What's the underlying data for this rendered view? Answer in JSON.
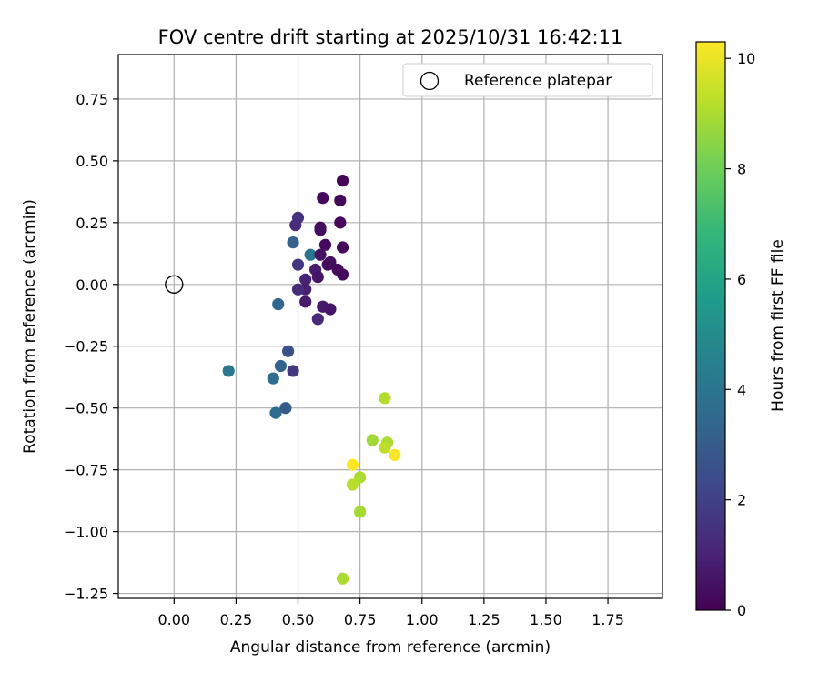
{
  "chart_data": {
    "type": "scatter",
    "title": "FOV centre drift starting at 2025/10/31 16:42:11",
    "xlabel": "Angular distance from reference (arcmin)",
    "ylabel": "Rotation from reference (arcmin)",
    "xlim": [
      -0.225,
      1.97
    ],
    "ylim": [
      -1.27,
      0.93
    ],
    "xticks": [
      0.0,
      0.25,
      0.5,
      0.75,
      1.0,
      1.25,
      1.5,
      1.75
    ],
    "xtick_labels": [
      "0.00",
      "0.25",
      "0.50",
      "0.75",
      "1.00",
      "1.25",
      "1.50",
      "1.75"
    ],
    "yticks": [
      0.75,
      0.5,
      0.25,
      0.0,
      -0.25,
      -0.5,
      -0.75,
      -1.0,
      -1.25
    ],
    "ytick_labels": [
      "0.75",
      "0.50",
      "0.25",
      "0.00",
      "−0.25",
      "−0.50",
      "−0.75",
      "−1.00",
      "−1.25"
    ],
    "grid": true,
    "legend": {
      "position": "top-right",
      "entries": [
        "Reference platepar"
      ]
    },
    "reference_point": {
      "x": 0.0,
      "y": 0.0,
      "label": "Reference platepar"
    },
    "colorbar": {
      "label": "Hours from first FF file",
      "range": [
        0,
        10.3
      ],
      "ticks": [
        0,
        2,
        4,
        6,
        8,
        10
      ],
      "tick_labels": [
        "0",
        "2",
        "4",
        "6",
        "8",
        "10"
      ],
      "colormap": [
        "#440154",
        "#482878",
        "#3e4989",
        "#31688e",
        "#26828e",
        "#1f9e89",
        "#35b779",
        "#6ece58",
        "#b5de2b",
        "#fde725"
      ]
    },
    "points": [
      {
        "x": 0.68,
        "y": 0.42,
        "h": 0.1
      },
      {
        "x": 0.6,
        "y": 0.35,
        "h": 0.3
      },
      {
        "x": 0.67,
        "y": 0.34,
        "h": 0.2
      },
      {
        "x": 0.5,
        "y": 0.27,
        "h": 1.5
      },
      {
        "x": 0.49,
        "y": 0.24,
        "h": 1.3
      },
      {
        "x": 0.59,
        "y": 0.23,
        "h": 0.3
      },
      {
        "x": 0.59,
        "y": 0.22,
        "h": 0.4
      },
      {
        "x": 0.67,
        "y": 0.25,
        "h": 0.2
      },
      {
        "x": 0.48,
        "y": 0.17,
        "h": 3.2
      },
      {
        "x": 0.61,
        "y": 0.16,
        "h": 0.2
      },
      {
        "x": 0.68,
        "y": 0.15,
        "h": 0.2
      },
      {
        "x": 0.55,
        "y": 0.12,
        "h": 4.0
      },
      {
        "x": 0.59,
        "y": 0.12,
        "h": 0.5
      },
      {
        "x": 0.63,
        "y": 0.09,
        "h": 0.4
      },
      {
        "x": 0.5,
        "y": 0.08,
        "h": 1.7
      },
      {
        "x": 0.57,
        "y": 0.06,
        "h": 0.8
      },
      {
        "x": 0.62,
        "y": 0.08,
        "h": 0.3
      },
      {
        "x": 0.66,
        "y": 0.06,
        "h": 0.3
      },
      {
        "x": 0.68,
        "y": 0.04,
        "h": 0.2
      },
      {
        "x": 0.58,
        "y": 0.03,
        "h": 0.6
      },
      {
        "x": 0.53,
        "y": 0.02,
        "h": 1.0
      },
      {
        "x": 0.53,
        "y": -0.02,
        "h": 0.9
      },
      {
        "x": 0.5,
        "y": -0.02,
        "h": 1.3
      },
      {
        "x": 0.53,
        "y": -0.07,
        "h": 0.8
      },
      {
        "x": 0.42,
        "y": -0.08,
        "h": 3.4
      },
      {
        "x": 0.6,
        "y": -0.09,
        "h": 0.7
      },
      {
        "x": 0.63,
        "y": -0.1,
        "h": 0.6
      },
      {
        "x": 0.58,
        "y": -0.14,
        "h": 1.2
      },
      {
        "x": 0.46,
        "y": -0.27,
        "h": 2.6
      },
      {
        "x": 0.43,
        "y": -0.33,
        "h": 3.3
      },
      {
        "x": 0.48,
        "y": -0.35,
        "h": 1.7
      },
      {
        "x": 0.22,
        "y": -0.35,
        "h": 4.2
      },
      {
        "x": 0.4,
        "y": -0.38,
        "h": 3.6
      },
      {
        "x": 0.45,
        "y": -0.5,
        "h": 3.0
      },
      {
        "x": 0.41,
        "y": -0.52,
        "h": 3.5
      },
      {
        "x": 0.85,
        "y": -0.46,
        "h": 9.1
      },
      {
        "x": 0.8,
        "y": -0.63,
        "h": 8.8
      },
      {
        "x": 0.86,
        "y": -0.64,
        "h": 9.0
      },
      {
        "x": 0.85,
        "y": -0.66,
        "h": 9.3
      },
      {
        "x": 0.89,
        "y": -0.69,
        "h": 10.2
      },
      {
        "x": 0.72,
        "y": -0.73,
        "h": 10.3
      },
      {
        "x": 0.75,
        "y": -0.78,
        "h": 9.0
      },
      {
        "x": 0.72,
        "y": -0.81,
        "h": 9.2
      },
      {
        "x": 0.75,
        "y": -0.92,
        "h": 8.9
      },
      {
        "x": 0.68,
        "y": -1.19,
        "h": 9.0
      }
    ]
  }
}
